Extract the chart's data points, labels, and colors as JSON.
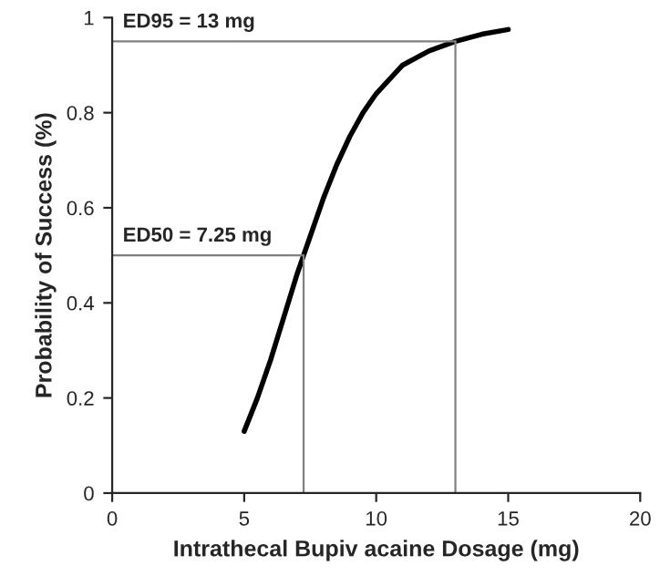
{
  "chart_data": {
    "type": "line",
    "xlabel": "Intrathecal Bupiv acaine Dosage (mg)",
    "ylabel": "Probability of Success (%)",
    "xlim": [
      0,
      20
    ],
    "xticks": [
      0,
      5,
      10,
      15,
      20
    ],
    "ylim": [
      0,
      1
    ],
    "yticks": [
      0,
      0.2,
      0.4,
      0.6,
      0.8,
      1
    ],
    "series": [
      {
        "color": "#000000",
        "x": [
          5,
          5.5,
          6,
          6.5,
          7,
          7.25,
          7.5,
          8,
          8.5,
          9,
          9.5,
          10,
          11,
          12,
          13,
          14,
          15
        ],
        "values": [
          0.13,
          0.2,
          0.28,
          0.37,
          0.46,
          0.5,
          0.54,
          0.62,
          0.69,
          0.75,
          0.8,
          0.84,
          0.9,
          0.93,
          0.95,
          0.965,
          0.975
        ]
      }
    ],
    "ref_lines": [
      {
        "axis": "y",
        "value": 0.95,
        "label": "ED95 = 13 mg",
        "color": "#808080"
      },
      {
        "axis": "x",
        "value": 13,
        "color": "#808080"
      },
      {
        "axis": "y",
        "value": 0.5,
        "label": "ED50 = 7.25 mg",
        "color": "#808080"
      },
      {
        "axis": "x",
        "value": 7.25,
        "color": "#808080"
      }
    ],
    "grid": false,
    "legend": false,
    "marker": "none",
    "line_style": "solid"
  }
}
